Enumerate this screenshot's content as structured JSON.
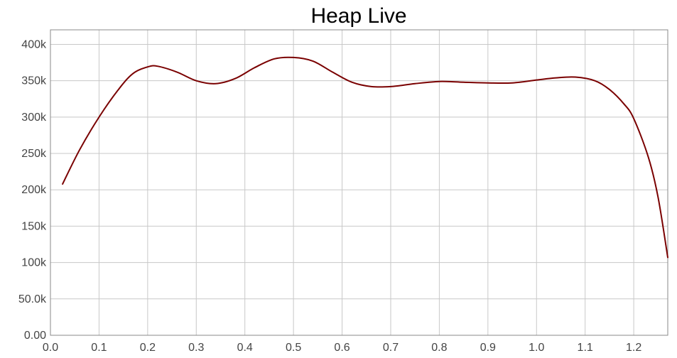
{
  "chart_data": {
    "type": "line",
    "title": "Heap Live",
    "xlabel": "",
    "ylabel": "",
    "xlim": [
      0.0,
      1.27
    ],
    "ylim": [
      0,
      420000
    ],
    "grid": true,
    "legend": "none",
    "x_ticks": [
      "0.0",
      "0.1",
      "0.2",
      "0.3",
      "0.4",
      "0.5",
      "0.6",
      "0.7",
      "0.8",
      "0.9",
      "1.0",
      "1.1",
      "1.2"
    ],
    "y_ticks": [
      "0.00",
      "50.0k",
      "100k",
      "150k",
      "200k",
      "250k",
      "300k",
      "350k",
      "400k"
    ],
    "x_tick_values": [
      0.0,
      0.1,
      0.2,
      0.3,
      0.4,
      0.5,
      0.6,
      0.7,
      0.8,
      0.9,
      1.0,
      1.1,
      1.2
    ],
    "y_tick_values": [
      0,
      50000,
      100000,
      150000,
      200000,
      250000,
      300000,
      350000,
      400000
    ],
    "series": [
      {
        "color": "#7a0000",
        "x": [
          0.025,
          0.06,
          0.1,
          0.14,
          0.17,
          0.2,
          0.22,
          0.26,
          0.3,
          0.34,
          0.38,
          0.42,
          0.46,
          0.5,
          0.54,
          0.58,
          0.62,
          0.66,
          0.7,
          0.75,
          0.8,
          0.85,
          0.9,
          0.95,
          1.0,
          1.04,
          1.08,
          1.12,
          1.15,
          1.18,
          1.2,
          1.23,
          1.25,
          1.27
        ],
        "y": [
          208000,
          255000,
          300000,
          338000,
          360000,
          369000,
          370000,
          362000,
          350000,
          346000,
          353000,
          368000,
          380000,
          382000,
          377000,
          362000,
          348000,
          342000,
          342000,
          346000,
          349000,
          348000,
          347000,
          347000,
          351000,
          354000,
          355000,
          350000,
          338000,
          318000,
          298000,
          245000,
          190000,
          107000
        ]
      }
    ]
  }
}
